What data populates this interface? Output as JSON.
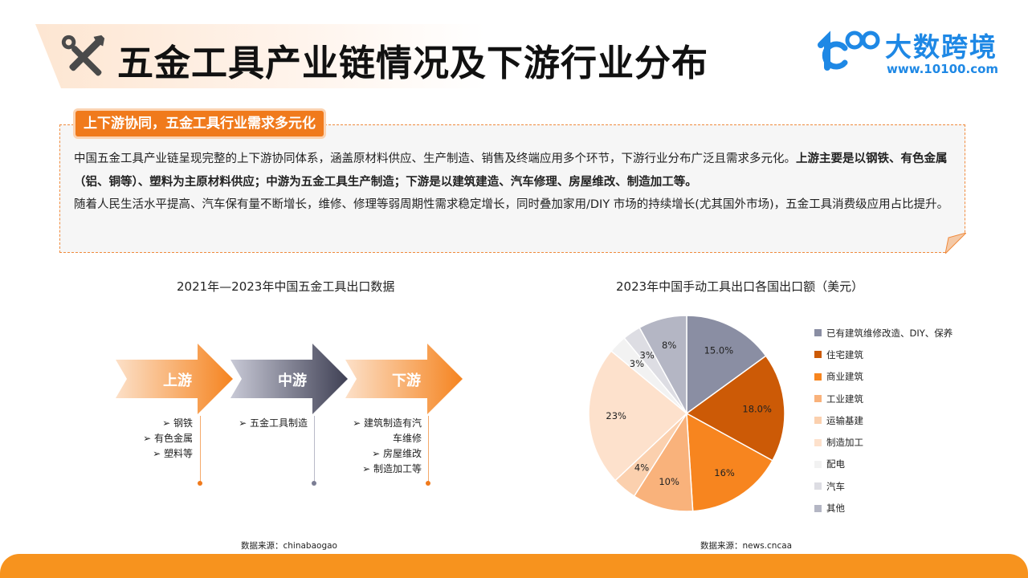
{
  "header": {
    "title": "五金工具产业链情况及下游行业分布",
    "icon": "tools-icon",
    "logo_text": "1000",
    "brand_name": "大数跨境",
    "brand_url": "www.10100.com"
  },
  "summary": {
    "tag": "上下游协同，五金工具行业需求多元化",
    "para1_plain": "中国五金工具产业链呈现完整的上下游协同体系，涵盖原材料供应、生产制造、销售及终端应用多个环节，下游行业分布广泛且需求多元化。",
    "para1_bold": "上游主要是以钢铁、有色金属（铝、铜等）、塑料为主原材料供应；中游为五金工具生产制造；下游是以建筑建造、汽车修理、房屋维改、制造加工等。",
    "para2": " 随着人民生活水平提高、汽车保有量不断增长，维修、修理等弱周期性需求稳定增长，同时叠加家用/DIY 市场的持续增长(尤其国外市场)，五金工具消费级应用占比提升。"
  },
  "left_chart": {
    "title": "2021年—2023年中国五金工具出口数据",
    "stages": [
      {
        "label": "上游",
        "items": [
          "➢  钢铁",
          "➢  有色金属",
          "➢  塑料等"
        ]
      },
      {
        "label": "中游",
        "items": [
          "➢  五金工具制造"
        ]
      },
      {
        "label": "下游",
        "items": [
          "➢  建筑制造有汽",
          "车维修",
          "➢  房屋维改",
          "➢  制造加工等"
        ]
      }
    ],
    "source": "数据来源：chinabaogao"
  },
  "chart_data": {
    "type": "pie",
    "title": "2023年中国手动工具出口各国出口额（美元）",
    "categories": [
      "已有建筑维修改造、DIY、保养",
      "住宅建筑",
      "商业建筑",
      "工业建筑",
      "运输基建",
      "制造加工",
      "配电",
      "汽车",
      "其他"
    ],
    "values": [
      15.0,
      18.0,
      16,
      10,
      4,
      23,
      3,
      3,
      8
    ],
    "labels": [
      "15.0%",
      "18.0%",
      "16%",
      "10%",
      "4%",
      "23%",
      "3%",
      "3%",
      "8%"
    ],
    "colors": [
      "#8a8ea3",
      "#cc5a06",
      "#f7851f",
      "#f9b27b",
      "#fbd0ae",
      "#fde1cc",
      "#f2f2f2",
      "#dddde3",
      "#b4b6c4"
    ],
    "legend": "right",
    "source": "数据来源：news.cncaa"
  }
}
